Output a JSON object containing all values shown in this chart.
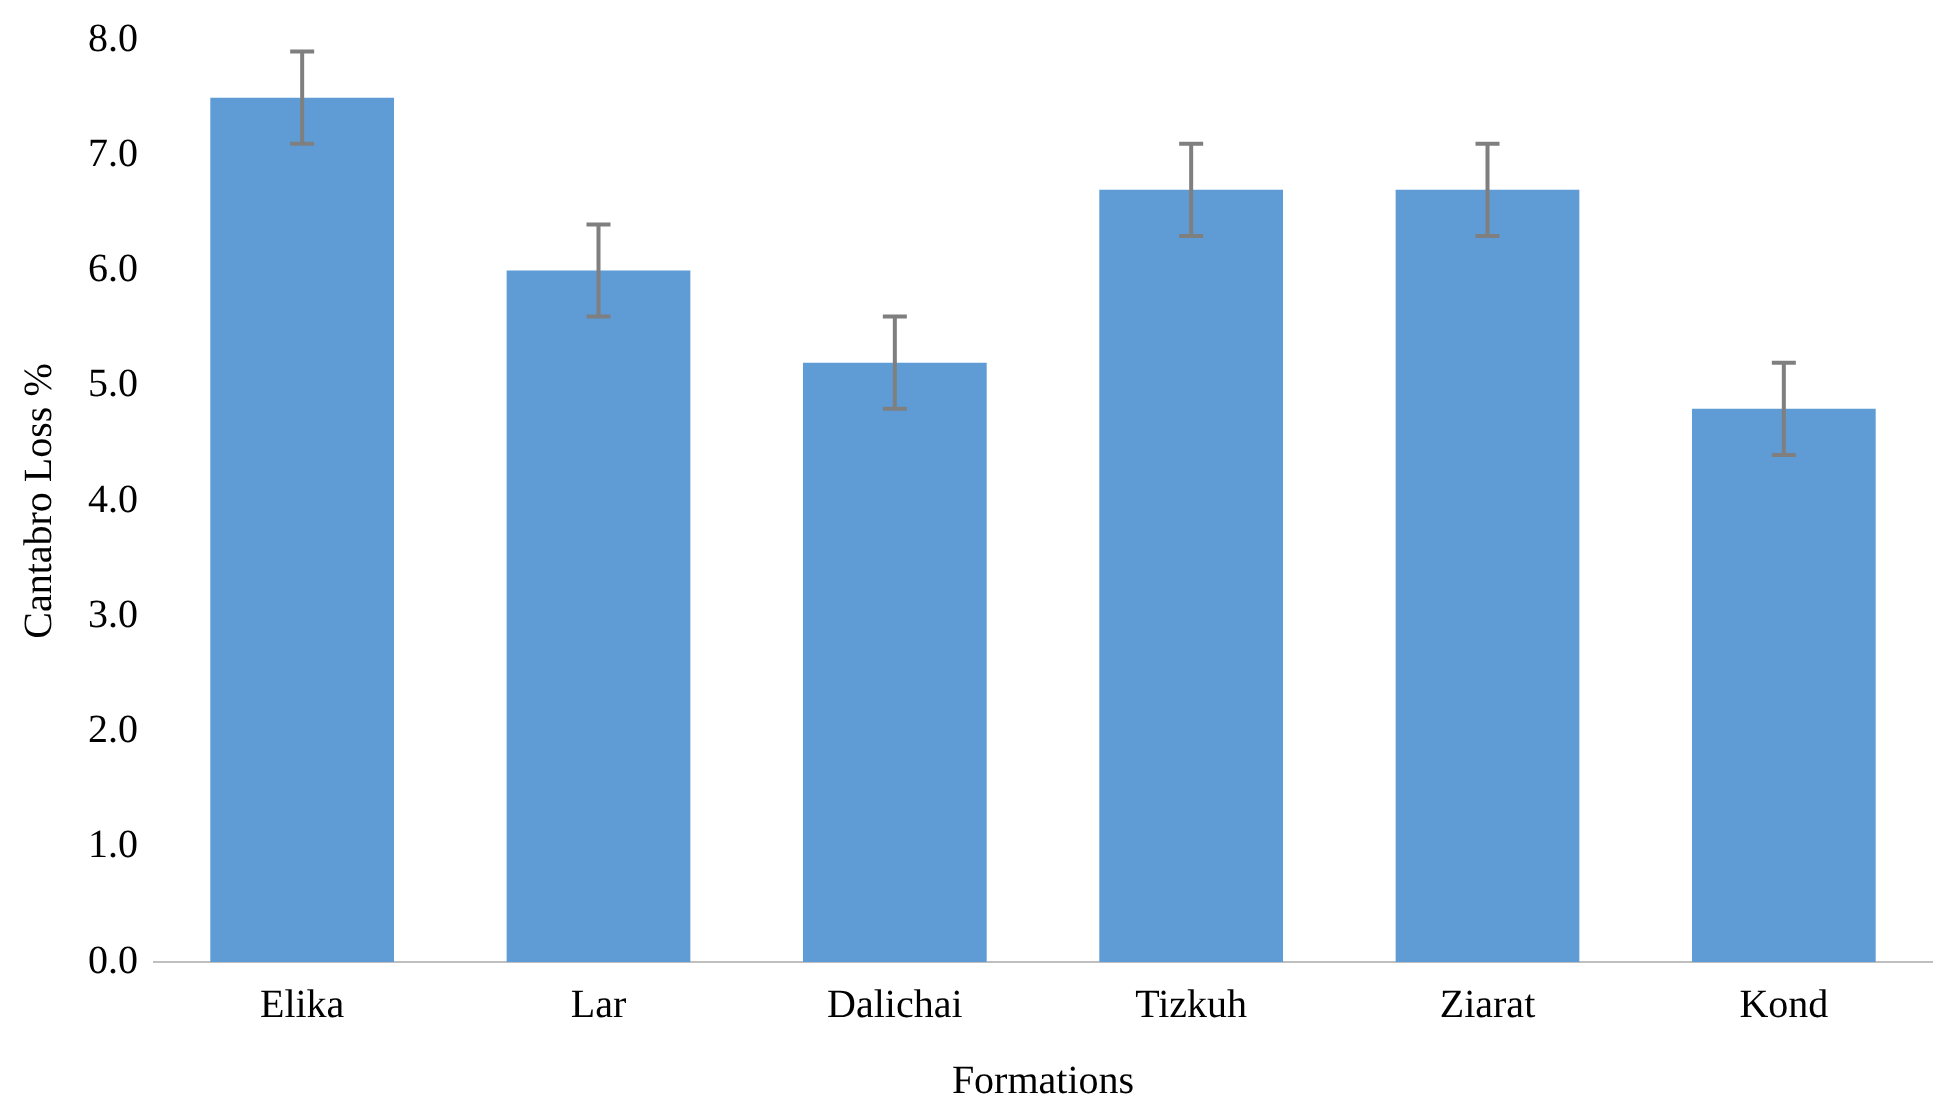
{
  "chart_data": {
    "type": "bar",
    "xlabel": "Formations",
    "ylabel": "Cantabro Loss %",
    "categories": [
      "Elika",
      "Lar",
      "Dalichai",
      "Tizkuh",
      "Ziarat",
      "Kond"
    ],
    "values": [
      7.5,
      6.0,
      5.2,
      6.7,
      6.7,
      4.8
    ],
    "errors": [
      0.4,
      0.4,
      0.4,
      0.4,
      0.4,
      0.4
    ],
    "color": "#5f9cd6",
    "ylim": [
      0,
      8
    ],
    "yticks": [
      {
        "value": 0,
        "label": "0.0"
      },
      {
        "value": 1,
        "label": "1.0"
      },
      {
        "value": 2,
        "label": "2.0"
      },
      {
        "value": 3,
        "label": "3.0"
      },
      {
        "value": 4,
        "label": "4.0"
      },
      {
        "value": 5,
        "label": "5.0"
      },
      {
        "value": 6,
        "label": "6.0"
      },
      {
        "value": 7,
        "label": "7.0"
      },
      {
        "value": 8,
        "label": "8.0"
      }
    ],
    "grid": false,
    "legend": false
  }
}
